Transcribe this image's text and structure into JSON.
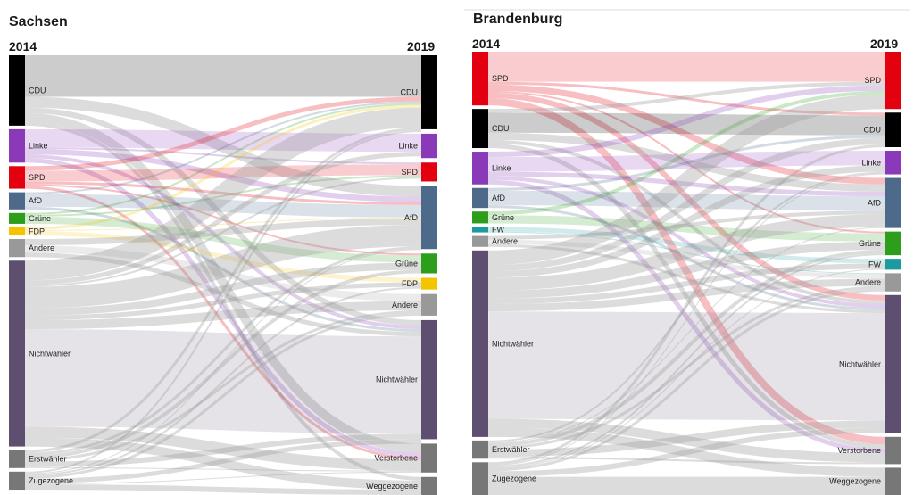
{
  "colors": {
    "CDU": "#000000",
    "Linke": "#8a3ab9",
    "SPD": "#e3000f",
    "AfD": "#4d6a8a",
    "Grüne": "#2c9e1c",
    "FDP": "#f5c400",
    "FW": "#1b9aa0",
    "Andere": "#999999",
    "Nichtwähler": "#5e4f70",
    "Erstwähler": "#777777",
    "Zugezogene": "#777777",
    "Verstorbene": "#777777",
    "Weggezogene": "#777777"
  },
  "chart_data": [
    {
      "type": "sankey",
      "title": "Sachsen",
      "left_year": "2014",
      "right_year": "2019",
      "left_nodes": [
        {
          "name": "CDU",
          "label": "CDU",
          "value": 78
        },
        {
          "name": "Linke",
          "label": "Linke",
          "value": 37
        },
        {
          "name": "SPD",
          "label": "SPD",
          "value": 25
        },
        {
          "name": "AfD",
          "label": "AfD",
          "value": 19
        },
        {
          "name": "Grüne",
          "label": "Grüne",
          "value": 12
        },
        {
          "name": "FDP",
          "label": "FDP",
          "value": 9
        },
        {
          "name": "Andere",
          "label": "Andere",
          "value": 20
        },
        {
          "name": "Nichtwähler",
          "label": "Nichtwähler",
          "value": 206
        },
        {
          "name": "Erstwähler",
          "label": "Erstwähler",
          "value": 20
        },
        {
          "name": "Zugezogene",
          "label": "Zugezogene",
          "value": 20
        }
      ],
      "right_nodes": [
        {
          "name": "CDU",
          "label": "CDU",
          "value": 82
        },
        {
          "name": "Linke",
          "label": "Linke",
          "value": 27
        },
        {
          "name": "SPD",
          "label": "SPD",
          "value": 21
        },
        {
          "name": "AfD",
          "label": "AfD",
          "value": 70
        },
        {
          "name": "Grüne",
          "label": "Grüne",
          "value": 22
        },
        {
          "name": "FDP",
          "label": "FDP",
          "value": 13
        },
        {
          "name": "Andere",
          "label": "Andere",
          "value": 24
        },
        {
          "name": "Nichtwähler",
          "label": "Nichtwähler",
          "value": 132
        },
        {
          "name": "Verstorbene",
          "label": "Verstorbene",
          "value": 32
        },
        {
          "name": "Weggezogene",
          "label": "Weggezogene",
          "value": 20
        }
      ],
      "flows": [
        [
          "CDU",
          "CDU",
          46
        ],
        [
          "CDU",
          "AfD",
          12
        ],
        [
          "CDU",
          "Nichtwähler",
          6
        ],
        [
          "CDU",
          "Verstorbene",
          10
        ],
        [
          "CDU",
          "Weggezogene",
          4
        ],
        [
          "Linke",
          "Linke",
          20
        ],
        [
          "Linke",
          "AfD",
          6
        ],
        [
          "Linke",
          "Nichtwähler",
          4
        ],
        [
          "Linke",
          "Verstorbene",
          5
        ],
        [
          "Linke",
          "SPD",
          2
        ],
        [
          "SPD",
          "SPD",
          12
        ],
        [
          "SPD",
          "CDU",
          5
        ],
        [
          "SPD",
          "AfD",
          3
        ],
        [
          "SPD",
          "Verstorbene",
          3
        ],
        [
          "SPD",
          "Grüne",
          2
        ],
        [
          "AfD",
          "AfD",
          14
        ],
        [
          "AfD",
          "Nichtwähler",
          3
        ],
        [
          "AfD",
          "CDU",
          2
        ],
        [
          "Grüne",
          "Grüne",
          8
        ],
        [
          "Grüne",
          "SPD",
          2
        ],
        [
          "Grüne",
          "CDU",
          2
        ],
        [
          "FDP",
          "FDP",
          5
        ],
        [
          "FDP",
          "CDU",
          3
        ],
        [
          "FDP",
          "AfD",
          1
        ],
        [
          "Andere",
          "Andere",
          8
        ],
        [
          "Andere",
          "AfD",
          7
        ],
        [
          "Andere",
          "Nichtwähler",
          5
        ],
        [
          "Nichtwähler",
          "Nichtwähler",
          108
        ],
        [
          "Nichtwähler",
          "CDU",
          22
        ],
        [
          "Nichtwähler",
          "AfD",
          24
        ],
        [
          "Nichtwähler",
          "Linke",
          5
        ],
        [
          "Nichtwähler",
          "Grüne",
          8
        ],
        [
          "Nichtwähler",
          "Andere",
          10
        ],
        [
          "Nichtwähler",
          "Verstorbene",
          12
        ],
        [
          "Nichtwähler",
          "Weggezogene",
          10
        ],
        [
          "Nichtwähler",
          "FDP",
          5
        ],
        [
          "Nichtwähler",
          "SPD",
          2
        ],
        [
          "Erstwähler",
          "Nichtwähler",
          6
        ],
        [
          "Erstwähler",
          "CDU",
          3
        ],
        [
          "Erstwähler",
          "AfD",
          3
        ],
        [
          "Erstwähler",
          "Grüne",
          4
        ],
        [
          "Erstwähler",
          "Andere",
          3
        ],
        [
          "Erstwähler",
          "Verstorbene",
          1
        ],
        [
          "Zugezogene",
          "CDU",
          2
        ],
        [
          "Zugezogene",
          "Nichtwähler",
          5
        ],
        [
          "Zugezogene",
          "Weggezogene",
          6
        ],
        [
          "Zugezogene",
          "Andere",
          3
        ],
        [
          "Zugezogene",
          "Verstorbene",
          1
        ],
        [
          "Zugezogene",
          "FDP",
          2
        ],
        [
          "Zugezogene",
          "AfD",
          1
        ]
      ]
    },
    {
      "type": "sankey",
      "title": "Brandenburg",
      "left_year": "2014",
      "right_year": "2019",
      "left_nodes": [
        {
          "name": "SPD",
          "label": "SPD",
          "value": 59
        },
        {
          "name": "CDU",
          "label": "CDU",
          "value": 43
        },
        {
          "name": "Linke",
          "label": "Linke",
          "value": 36
        },
        {
          "name": "AfD",
          "label": "AfD",
          "value": 22
        },
        {
          "name": "Grüne",
          "label": "Grüne",
          "value": 13
        },
        {
          "name": "FW",
          "label": "FW",
          "value": 6
        },
        {
          "name": "Andere",
          "label": "Andere",
          "value": 12
        },
        {
          "name": "Nichtwähler",
          "label": "Nichtwähler",
          "value": 205
        },
        {
          "name": "Erstwähler",
          "label": "Erstwähler",
          "value": 20
        },
        {
          "name": "Zugezogene",
          "label": "Zugezogene",
          "value": 36
        }
      ],
      "right_nodes": [
        {
          "name": "SPD",
          "label": "SPD",
          "value": 63
        },
        {
          "name": "CDU",
          "label": "CDU",
          "value": 38
        },
        {
          "name": "Linke",
          "label": "Linke",
          "value": 26
        },
        {
          "name": "AfD",
          "label": "AfD",
          "value": 55
        },
        {
          "name": "Grüne",
          "label": "Grüne",
          "value": 26
        },
        {
          "name": "FW",
          "label": "FW",
          "value": 12
        },
        {
          "name": "Andere",
          "label": "Andere",
          "value": 20
        },
        {
          "name": "Nichtwähler",
          "label": "Nichtwähler",
          "value": 152
        },
        {
          "name": "Verstorbene",
          "label": "Verstorbene",
          "value": 30
        },
        {
          "name": "Weggezogene",
          "label": "Weggezogene",
          "value": 30
        }
      ],
      "flows": [
        [
          "SPD",
          "SPD",
          33
        ],
        [
          "SPD",
          "CDU",
          3
        ],
        [
          "SPD",
          "AfD",
          7
        ],
        [
          "SPD",
          "Nichtwähler",
          6
        ],
        [
          "SPD",
          "Verstorbene",
          8
        ],
        [
          "SPD",
          "Grüne",
          2
        ],
        [
          "CDU",
          "CDU",
          22
        ],
        [
          "CDU",
          "AfD",
          8
        ],
        [
          "CDU",
          "Verstorbene",
          5
        ],
        [
          "CDU",
          "SPD",
          4
        ],
        [
          "CDU",
          "Nichtwähler",
          4
        ],
        [
          "Linke",
          "Linke",
          16
        ],
        [
          "Linke",
          "SPD",
          6
        ],
        [
          "Linke",
          "AfD",
          5
        ],
        [
          "Linke",
          "Verstorbene",
          5
        ],
        [
          "Linke",
          "Nichtwähler",
          4
        ],
        [
          "AfD",
          "AfD",
          16
        ],
        [
          "AfD",
          "Nichtwähler",
          3
        ],
        [
          "AfD",
          "CDU",
          3
        ],
        [
          "Grüne",
          "Grüne",
          9
        ],
        [
          "Grüne",
          "SPD",
          4
        ],
        [
          "FW",
          "FW",
          5
        ],
        [
          "FW",
          "Andere",
          1
        ],
        [
          "Andere",
          "Andere",
          5
        ],
        [
          "Andere",
          "AfD",
          4
        ],
        [
          "Andere",
          "Nichtwähler",
          3
        ],
        [
          "Nichtwähler",
          "Nichtwähler",
          118
        ],
        [
          "Nichtwähler",
          "SPD",
          16
        ],
        [
          "Nichtwähler",
          "CDU",
          7
        ],
        [
          "Nichtwähler",
          "AfD",
          14
        ],
        [
          "Nichtwähler",
          "Linke",
          7
        ],
        [
          "Nichtwähler",
          "Grüne",
          9
        ],
        [
          "Nichtwähler",
          "Andere",
          8
        ],
        [
          "Nichtwähler",
          "Verstorbene",
          10
        ],
        [
          "Nichtwähler",
          "Weggezogene",
          10
        ],
        [
          "Nichtwähler",
          "FW",
          6
        ],
        [
          "Erstwähler",
          "Nichtwähler",
          8
        ],
        [
          "Erstwähler",
          "Grüne",
          4
        ],
        [
          "Erstwähler",
          "AfD",
          1
        ],
        [
          "Erstwähler",
          "Andere",
          3
        ],
        [
          "Erstwähler",
          "Verstorbene",
          2
        ],
        [
          "Erstwähler",
          "Linke",
          2
        ],
        [
          "Zugezogene",
          "Nichtwähler",
          6
        ],
        [
          "Zugezogene",
          "Weggezogene",
          20
        ],
        [
          "Zugezogene",
          "Andere",
          3
        ],
        [
          "Zugezogene",
          "Linke",
          1
        ],
        [
          "Zugezogene",
          "Grüne",
          2
        ],
        [
          "Zugezogene",
          "FW",
          1
        ],
        [
          "Zugezogene",
          "CDU",
          3
        ]
      ]
    }
  ]
}
